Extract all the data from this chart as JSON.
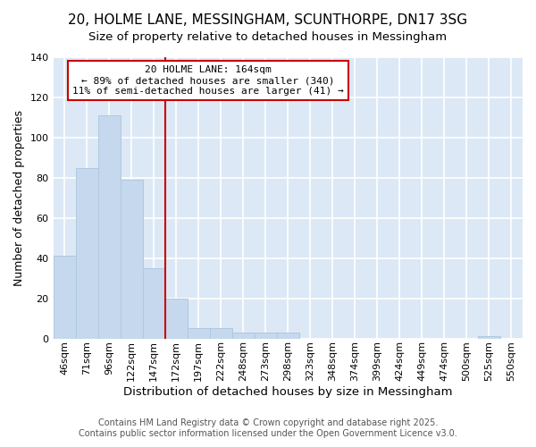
{
  "title1": "20, HOLME LANE, MESSINGHAM, SCUNTHORPE, DN17 3SG",
  "title2": "Size of property relative to detached houses in Messingham",
  "xlabel": "Distribution of detached houses by size in Messingham",
  "ylabel": "Number of detached properties",
  "categories": [
    "46sqm",
    "71sqm",
    "96sqm",
    "122sqm",
    "147sqm",
    "172sqm",
    "197sqm",
    "222sqm",
    "248sqm",
    "273sqm",
    "298sqm",
    "323sqm",
    "348sqm",
    "374sqm",
    "399sqm",
    "424sqm",
    "449sqm",
    "474sqm",
    "500sqm",
    "525sqm",
    "550sqm"
  ],
  "values": [
    41,
    85,
    111,
    79,
    35,
    20,
    5,
    5,
    3,
    3,
    3,
    0,
    0,
    0,
    0,
    0,
    0,
    0,
    0,
    1,
    0
  ],
  "bar_color": "#c5d8ed",
  "bar_edge_color": "#aec9e0",
  "vline_index": 5,
  "vline_color": "#cc0000",
  "annotation_line1": "20 HOLME LANE: 164sqm",
  "annotation_line2": "← 89% of detached houses are smaller (340)",
  "annotation_line3": "11% of semi-detached houses are larger (41) →",
  "annotation_box_color": "#ffffff",
  "annotation_box_edge": "#cc0000",
  "ylim": [
    0,
    140
  ],
  "yticks": [
    0,
    20,
    40,
    60,
    80,
    100,
    120,
    140
  ],
  "fig_background": "#ffffff",
  "plot_background": "#dce8f5",
  "grid_color": "#ffffff",
  "footnote1": "Contains HM Land Registry data © Crown copyright and database right 2025.",
  "footnote2": "Contains public sector information licensed under the Open Government Licence v3.0.",
  "title1_fontsize": 11,
  "title2_fontsize": 9.5,
  "ylabel_fontsize": 9,
  "xlabel_fontsize": 9.5,
  "tick_fontsize": 8,
  "ann_fontsize": 8,
  "footnote_fontsize": 7
}
